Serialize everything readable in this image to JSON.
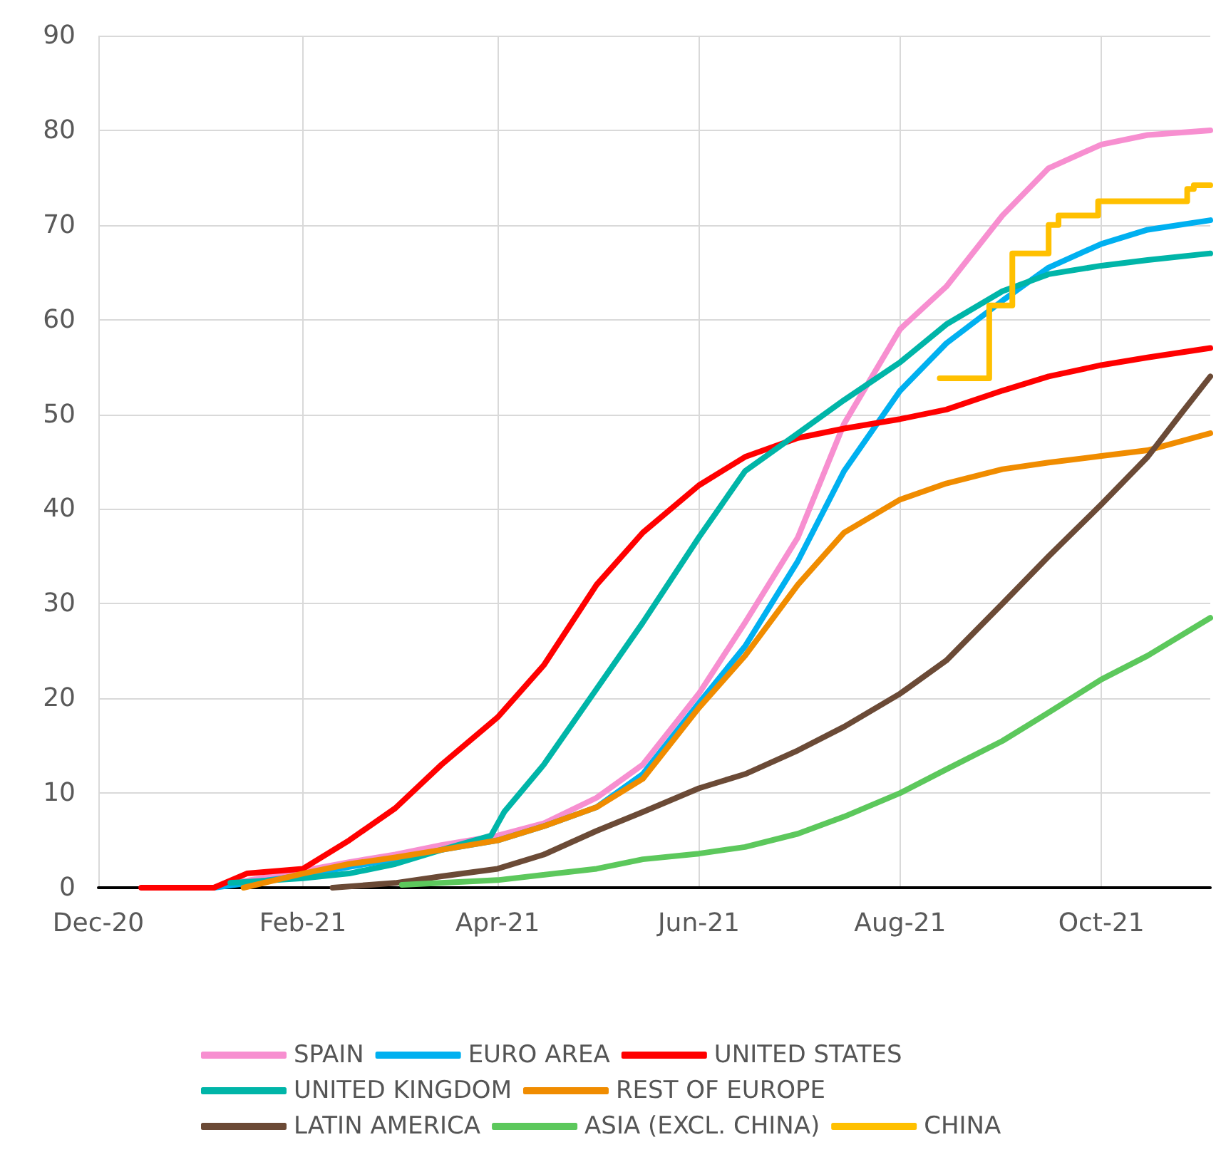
{
  "chart_data": {
    "type": "line",
    "xlim": [
      "2020-12-01",
      "2021-11-03"
    ],
    "ylim": [
      0,
      90
    ],
    "xticks": [
      {
        "value": "2020-12-01",
        "label": "Dec-20"
      },
      {
        "value": "2021-02-01",
        "label": "Feb-21"
      },
      {
        "value": "2021-04-01",
        "label": "Apr-21"
      },
      {
        "value": "2021-06-01",
        "label": "Jun-21"
      },
      {
        "value": "2021-08-01",
        "label": "Aug-21"
      },
      {
        "value": "2021-10-01",
        "label": "Oct-21"
      }
    ],
    "yticks": [
      0,
      10,
      20,
      30,
      40,
      50,
      60,
      70,
      80,
      90
    ],
    "grid": true,
    "legend": "bottom",
    "marker": "none",
    "line_style": "solid",
    "series": [
      {
        "name": "SPAIN",
        "color": "#f78fd0",
        "x": [
          "2021-01-08",
          "2021-02-01",
          "2021-02-15",
          "2021-03-01",
          "2021-03-15",
          "2021-04-01",
          "2021-04-15",
          "2021-05-01",
          "2021-05-15",
          "2021-06-01",
          "2021-06-15",
          "2021-07-01",
          "2021-07-15",
          "2021-08-01",
          "2021-08-15",
          "2021-09-01",
          "2021-09-15",
          "2021-10-01",
          "2021-10-15",
          "2021-11-03"
        ],
        "values": [
          0.3,
          1.8,
          2.7,
          3.5,
          4.5,
          5.5,
          6.8,
          9.5,
          13,
          20.5,
          28,
          37,
          49,
          59,
          63.5,
          71,
          76,
          78.5,
          79.5,
          80
        ]
      },
      {
        "name": "EURO AREA",
        "color": "#00b0f0",
        "x": [
          "2021-01-05",
          "2021-02-01",
          "2021-02-15",
          "2021-03-01",
          "2021-03-15",
          "2021-04-01",
          "2021-04-15",
          "2021-05-01",
          "2021-05-15",
          "2021-06-01",
          "2021-06-15",
          "2021-07-01",
          "2021-07-15",
          "2021-08-01",
          "2021-08-15",
          "2021-09-01",
          "2021-09-15",
          "2021-10-01",
          "2021-10-15",
          "2021-11-03"
        ],
        "values": [
          0,
          1.3,
          2.2,
          3,
          4,
          5,
          6.5,
          8.5,
          12,
          19.5,
          25.5,
          34.5,
          44,
          52.5,
          57.5,
          62,
          65.5,
          68,
          69.5,
          70.5
        ]
      },
      {
        "name": "UNITED STATES",
        "color": "#ff0000",
        "x": [
          "2020-12-14",
          "2021-01-05",
          "2021-01-15",
          "2021-02-01",
          "2021-02-15",
          "2021-03-01",
          "2021-03-15",
          "2021-04-01",
          "2021-04-15",
          "2021-05-01",
          "2021-05-15",
          "2021-06-01",
          "2021-06-15",
          "2021-07-01",
          "2021-07-15",
          "2021-08-01",
          "2021-08-15",
          "2021-09-01",
          "2021-09-15",
          "2021-10-01",
          "2021-10-15",
          "2021-11-03"
        ],
        "values": [
          0,
          0,
          1.5,
          2,
          5,
          8.4,
          13,
          18,
          23.5,
          32,
          37.5,
          42.5,
          45.5,
          47.5,
          48.5,
          49.5,
          50.5,
          52.5,
          54,
          55.2,
          56,
          57
        ]
      },
      {
        "name": "UNITED KINGDOM",
        "color": "#00b5a8",
        "x": [
          "2021-01-10",
          "2021-02-01",
          "2021-02-15",
          "2021-03-01",
          "2021-03-15",
          "2021-03-30",
          "2021-04-03",
          "2021-04-15",
          "2021-05-01",
          "2021-05-15",
          "2021-06-01",
          "2021-06-15",
          "2021-07-01",
          "2021-07-15",
          "2021-08-01",
          "2021-08-15",
          "2021-09-01",
          "2021-09-15",
          "2021-10-01",
          "2021-10-15",
          "2021-11-03"
        ],
        "values": [
          0.5,
          1,
          1.5,
          2.5,
          4,
          5.5,
          8,
          13,
          21,
          28,
          37,
          44,
          48,
          51.5,
          55.5,
          59.5,
          63,
          64.8,
          65.7,
          66.3,
          67
        ]
      },
      {
        "name": "REST OF EUROPE",
        "color": "#f08c00",
        "x": [
          "2021-01-14",
          "2021-02-01",
          "2021-02-15",
          "2021-03-01",
          "2021-03-15",
          "2021-04-01",
          "2021-04-15",
          "2021-05-01",
          "2021-05-15",
          "2021-06-01",
          "2021-06-15",
          "2021-07-01",
          "2021-07-15",
          "2021-08-01",
          "2021-08-15",
          "2021-09-01",
          "2021-09-15",
          "2021-10-01",
          "2021-10-15",
          "2021-11-03"
        ],
        "values": [
          0,
          1.5,
          2.5,
          3.2,
          4,
          5,
          6.5,
          8.5,
          11.5,
          19,
          24.5,
          32,
          37.5,
          41,
          42.7,
          44.2,
          44.9,
          45.6,
          46.2,
          48
        ]
      },
      {
        "name": "LATIN AMERICA",
        "color": "#6b4a36",
        "x": [
          "2021-02-10",
          "2021-03-01",
          "2021-03-15",
          "2021-04-01",
          "2021-04-15",
          "2021-05-01",
          "2021-05-15",
          "2021-06-01",
          "2021-06-15",
          "2021-07-01",
          "2021-07-15",
          "2021-08-01",
          "2021-08-15",
          "2021-09-01",
          "2021-09-15",
          "2021-10-01",
          "2021-10-15",
          "2021-10-25",
          "2021-11-03"
        ],
        "values": [
          0,
          0.5,
          1.2,
          2,
          3.5,
          6,
          8,
          10.5,
          12,
          14.5,
          17,
          20.5,
          24,
          30,
          35,
          40.5,
          45.5,
          50,
          54
        ]
      },
      {
        "name": "ASIA (EXCL. CHINA)",
        "color": "#5cc85c",
        "x": [
          "2021-03-03",
          "2021-04-01",
          "2021-05-01",
          "2021-05-15",
          "2021-06-01",
          "2021-06-15",
          "2021-07-01",
          "2021-07-15",
          "2021-08-01",
          "2021-08-15",
          "2021-09-01",
          "2021-09-15",
          "2021-10-01",
          "2021-10-15",
          "2021-11-03"
        ],
        "values": [
          0.3,
          0.8,
          2,
          3,
          3.6,
          4.3,
          5.7,
          7.5,
          10,
          12.5,
          15.5,
          18.5,
          22,
          24.5,
          28.5
        ]
      },
      {
        "name": "CHINA",
        "color": "#ffc000",
        "type": "step",
        "x": [
          "2021-08-13",
          "2021-08-28",
          "2021-09-04",
          "2021-09-15",
          "2021-09-18",
          "2021-09-30",
          "2021-10-27",
          "2021-10-29",
          "2021-11-03"
        ],
        "values": [
          53.8,
          61.5,
          67,
          70,
          71,
          72.5,
          73.8,
          74.2,
          74.2
        ]
      }
    ]
  }
}
